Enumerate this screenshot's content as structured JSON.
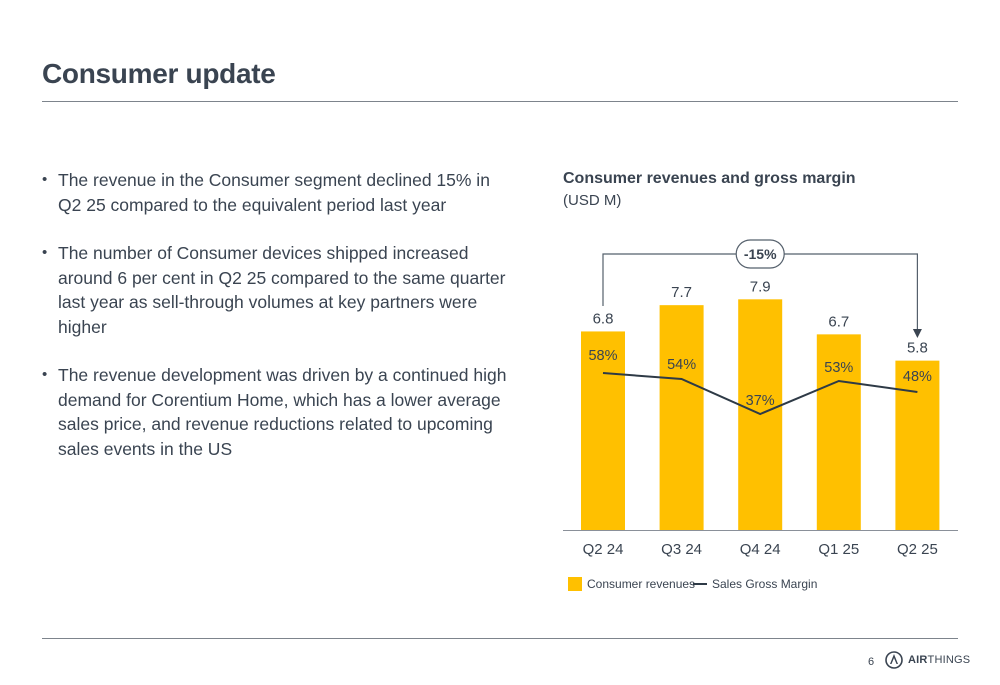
{
  "page": {
    "title": "Consumer update",
    "page_number": "6",
    "logo_text_bold": "AIR",
    "logo_text": "THINGS"
  },
  "bullets": [
    "The revenue in the Consumer segment declined 15% in Q2 25 compared to the equivalent period last year",
    "The number of Consumer devices shipped increased around 6 per cent in Q2 25 compared to the same quarter last year as sell-through volumes at key partners were higher",
    "The revenue development was driven by a continued high demand for Corentium Home, which has a lower average sales price, and revenue reductions related to upcoming sales events in the US"
  ],
  "chart_data": {
    "type": "bar",
    "title": "Consumer revenues and gross margin",
    "subtitle": "(USD M)",
    "categories": [
      "Q2 24",
      "Q3 24",
      "Q4 24",
      "Q1 25",
      "Q2 25"
    ],
    "series": [
      {
        "name": "Consumer revenues",
        "type": "bar",
        "values": [
          6.8,
          7.7,
          7.9,
          6.7,
          5.8
        ],
        "labels": [
          "6.8",
          "7.7",
          "7.9",
          "6.7",
          "5.8"
        ],
        "color": "#ffc000"
      },
      {
        "name": "Sales Gross Margin",
        "type": "line",
        "values": [
          58,
          54,
          37,
          53,
          48
        ],
        "labels": [
          "58%",
          "54%",
          "37%",
          "53%",
          "48%"
        ],
        "color": "#2e3a46"
      }
    ],
    "annotation": {
      "text": "-15%",
      "from": "Q2 24",
      "to": "Q2 25"
    },
    "legend_position": "bottom-left",
    "grid": false
  }
}
